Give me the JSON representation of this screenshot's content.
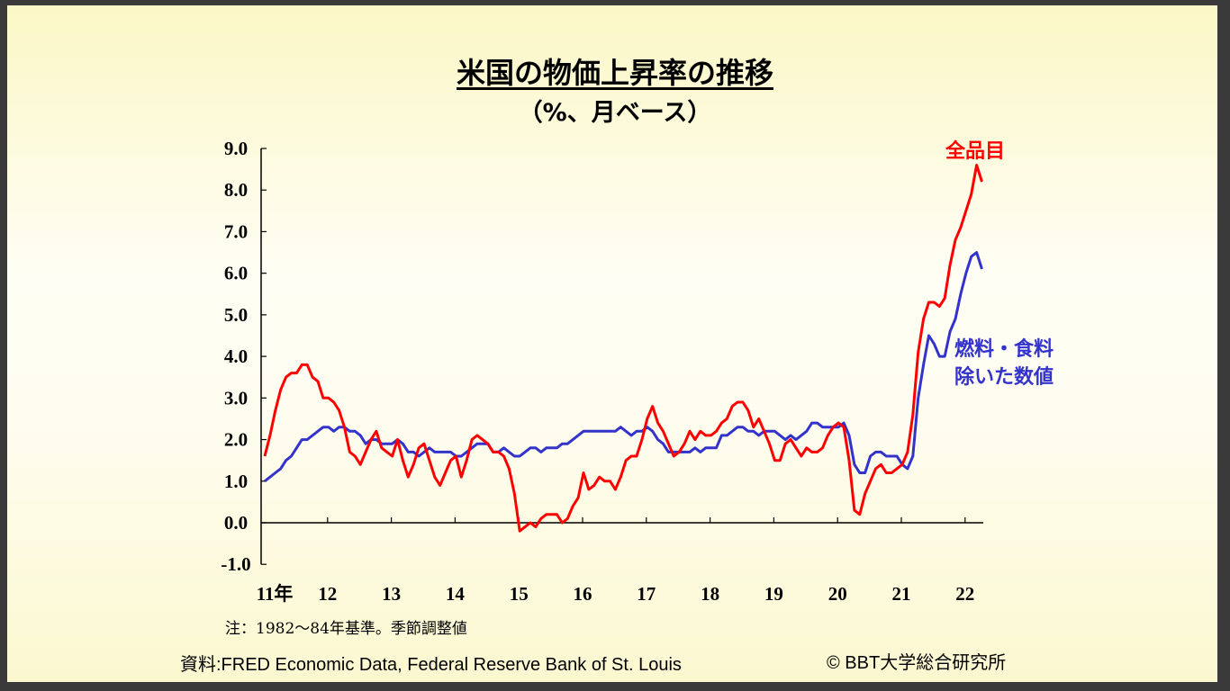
{
  "slide": {
    "title": "米国の物価上昇率の推移",
    "subtitle": "（%、月ベース）",
    "note": "注：1982～84年基準。季節調整値",
    "source": "資料:FRED Economic Data, Federal Reserve Bank of St. Louis",
    "copyright": "© BBT大学総合研究所"
  },
  "chart_data": {
    "type": "line",
    "title": "米国の物価上昇率の推移",
    "subtitle": "（%、月ベース）",
    "ylim": [
      -1.0,
      9.0
    ],
    "yticks": [
      "9.0",
      "8.0",
      "7.0",
      "6.0",
      "5.0",
      "4.0",
      "3.0",
      "2.0",
      "1.0",
      "0.0",
      "-1.0"
    ],
    "xticks": [
      "11年",
      "12",
      "13",
      "14",
      "15",
      "16",
      "17",
      "18",
      "19",
      "20",
      "21",
      "22"
    ],
    "x_start": "2011-01",
    "x_frequency": "monthly",
    "grid": false,
    "series": [
      {
        "name": "全品目",
        "color": "#ff0000",
        "values": [
          1.6,
          2.1,
          2.7,
          3.2,
          3.5,
          3.6,
          3.6,
          3.8,
          3.8,
          3.5,
          3.4,
          3.0,
          3.0,
          2.9,
          2.7,
          2.3,
          1.7,
          1.6,
          1.4,
          1.7,
          2.0,
          2.2,
          1.8,
          1.7,
          1.6,
          2.0,
          1.5,
          1.1,
          1.4,
          1.8,
          1.9,
          1.5,
          1.1,
          0.9,
          1.2,
          1.5,
          1.6,
          1.1,
          1.5,
          2.0,
          2.1,
          2.0,
          1.9,
          1.7,
          1.7,
          1.6,
          1.3,
          0.7,
          -0.2,
          -0.1,
          0.0,
          -0.1,
          0.1,
          0.2,
          0.2,
          0.2,
          0.0,
          0.1,
          0.4,
          0.6,
          1.2,
          0.8,
          0.9,
          1.1,
          1.0,
          1.0,
          0.8,
          1.1,
          1.5,
          1.6,
          1.6,
          2.0,
          2.5,
          2.8,
          2.4,
          2.2,
          1.9,
          1.6,
          1.7,
          1.9,
          2.2,
          2.0,
          2.2,
          2.1,
          2.1,
          2.2,
          2.4,
          2.5,
          2.8,
          2.9,
          2.9,
          2.7,
          2.3,
          2.5,
          2.2,
          1.9,
          1.5,
          1.5,
          1.9,
          2.0,
          1.8,
          1.6,
          1.8,
          1.7,
          1.7,
          1.8,
          2.1,
          2.3,
          2.4,
          2.3,
          1.5,
          0.3,
          0.2,
          0.7,
          1.0,
          1.3,
          1.4,
          1.2,
          1.2,
          1.3,
          1.4,
          1.7,
          2.6,
          4.1,
          4.9,
          5.3,
          5.3,
          5.2,
          5.4,
          6.2,
          6.8,
          7.1,
          7.5,
          7.9,
          8.6,
          8.2
        ]
      },
      {
        "name": "燃料・食料除いた数値",
        "color": "#3333cc",
        "values": [
          1.0,
          1.1,
          1.2,
          1.3,
          1.5,
          1.6,
          1.8,
          2.0,
          2.0,
          2.1,
          2.2,
          2.3,
          2.3,
          2.2,
          2.3,
          2.3,
          2.2,
          2.2,
          2.1,
          1.9,
          2.0,
          2.0,
          1.9,
          1.9,
          1.9,
          2.0,
          1.9,
          1.7,
          1.7,
          1.6,
          1.7,
          1.8,
          1.7,
          1.7,
          1.7,
          1.7,
          1.6,
          1.6,
          1.7,
          1.8,
          1.9,
          1.9,
          1.9,
          1.7,
          1.7,
          1.8,
          1.7,
          1.6,
          1.6,
          1.7,
          1.8,
          1.8,
          1.7,
          1.8,
          1.8,
          1.8,
          1.9,
          1.9,
          2.0,
          2.1,
          2.2,
          2.2,
          2.2,
          2.2,
          2.2,
          2.2,
          2.2,
          2.3,
          2.2,
          2.1,
          2.2,
          2.2,
          2.3,
          2.2,
          2.0,
          1.9,
          1.7,
          1.7,
          1.7,
          1.7,
          1.7,
          1.8,
          1.7,
          1.8,
          1.8,
          1.8,
          2.1,
          2.1,
          2.2,
          2.3,
          2.3,
          2.2,
          2.2,
          2.1,
          2.2,
          2.2,
          2.2,
          2.1,
          2.0,
          2.1,
          2.0,
          2.1,
          2.2,
          2.4,
          2.4,
          2.3,
          2.3,
          2.3,
          2.3,
          2.4,
          2.1,
          1.4,
          1.2,
          1.2,
          1.6,
          1.7,
          1.7,
          1.6,
          1.6,
          1.6,
          1.4,
          1.3,
          1.6,
          3.0,
          3.8,
          4.5,
          4.3,
          4.0,
          4.0,
          4.6,
          4.9,
          5.5,
          6.0,
          6.4,
          6.5,
          6.1
        ]
      }
    ]
  }
}
